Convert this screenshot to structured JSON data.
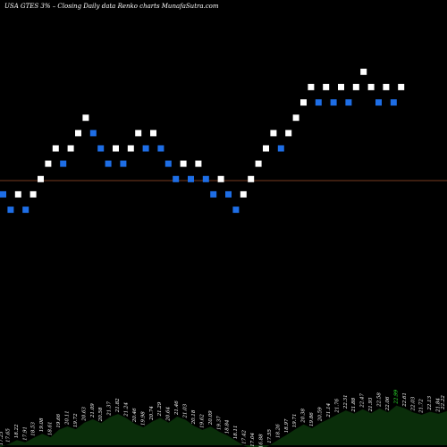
{
  "chart_data": {
    "type": "renko",
    "title": "USA GTES 3% – Closing Daily data Renko charts MunafaSutra.com",
    "colors": {
      "background": "#000000",
      "up_brick": "#ffffff",
      "down_brick": "#1e6ee6",
      "reference_line": "#a0522d",
      "volume_fill": "#0a2e0a",
      "volume_label": "#ffffff",
      "volume_label_highlight": "#33ff33"
    },
    "price_range": [
      17.0,
      27.5
    ],
    "reference_price": 21.9,
    "brick_size": 0.5,
    "bricks": [
      {
        "close": 21.45,
        "dir": "down"
      },
      {
        "close": 20.95,
        "dir": "down"
      },
      {
        "close": 21.45,
        "dir": "up"
      },
      {
        "close": 20.95,
        "dir": "down"
      },
      {
        "close": 21.45,
        "dir": "up"
      },
      {
        "close": 21.95,
        "dir": "up"
      },
      {
        "close": 22.45,
        "dir": "up"
      },
      {
        "close": 22.95,
        "dir": "up"
      },
      {
        "close": 22.45,
        "dir": "down"
      },
      {
        "close": 22.95,
        "dir": "up"
      },
      {
        "close": 23.45,
        "dir": "up"
      },
      {
        "close": 23.95,
        "dir": "up"
      },
      {
        "close": 23.45,
        "dir": "down"
      },
      {
        "close": 22.95,
        "dir": "down"
      },
      {
        "close": 22.45,
        "dir": "down"
      },
      {
        "close": 22.95,
        "dir": "up"
      },
      {
        "close": 22.45,
        "dir": "down"
      },
      {
        "close": 22.95,
        "dir": "up"
      },
      {
        "close": 23.45,
        "dir": "up"
      },
      {
        "close": 22.95,
        "dir": "down"
      },
      {
        "close": 23.45,
        "dir": "up"
      },
      {
        "close": 22.95,
        "dir": "down"
      },
      {
        "close": 22.45,
        "dir": "down"
      },
      {
        "close": 21.95,
        "dir": "down"
      },
      {
        "close": 22.45,
        "dir": "up"
      },
      {
        "close": 21.95,
        "dir": "down"
      },
      {
        "close": 22.45,
        "dir": "up"
      },
      {
        "close": 21.95,
        "dir": "down"
      },
      {
        "close": 21.45,
        "dir": "down"
      },
      {
        "close": 21.95,
        "dir": "up"
      },
      {
        "close": 21.45,
        "dir": "down"
      },
      {
        "close": 20.95,
        "dir": "down"
      },
      {
        "close": 21.45,
        "dir": "up"
      },
      {
        "close": 21.95,
        "dir": "up"
      },
      {
        "close": 22.45,
        "dir": "up"
      },
      {
        "close": 22.95,
        "dir": "up"
      },
      {
        "close": 23.45,
        "dir": "up"
      },
      {
        "close": 22.95,
        "dir": "down"
      },
      {
        "close": 23.45,
        "dir": "up"
      },
      {
        "close": 23.95,
        "dir": "up"
      },
      {
        "close": 24.45,
        "dir": "up"
      },
      {
        "close": 24.95,
        "dir": "up"
      },
      {
        "close": 24.45,
        "dir": "down"
      },
      {
        "close": 24.95,
        "dir": "up"
      },
      {
        "close": 24.45,
        "dir": "down"
      },
      {
        "close": 24.95,
        "dir": "up"
      },
      {
        "close": 24.45,
        "dir": "down"
      },
      {
        "close": 24.95,
        "dir": "up"
      },
      {
        "close": 25.45,
        "dir": "up"
      },
      {
        "close": 24.95,
        "dir": "up"
      },
      {
        "close": 24.45,
        "dir": "down"
      },
      {
        "close": 24.95,
        "dir": "up"
      },
      {
        "close": 24.45,
        "dir": "down"
      },
      {
        "close": 24.95,
        "dir": "up"
      }
    ],
    "volume_labels": [
      {
        "text": "17.23",
        "value": 17.23,
        "highlight": false
      },
      {
        "text": "17.65",
        "value": 17.65,
        "highlight": false
      },
      {
        "text": "18.22",
        "value": 18.22,
        "highlight": false
      },
      {
        "text": "17.91",
        "value": 17.91,
        "highlight": false
      },
      {
        "text": "18.53",
        "value": 18.53,
        "highlight": false
      },
      {
        "text": "19.08",
        "value": 19.08,
        "highlight": false
      },
      {
        "text": "18.61",
        "value": 18.61,
        "highlight": false
      },
      {
        "text": "19.66",
        "value": 19.66,
        "highlight": false
      },
      {
        "text": "20.11",
        "value": 20.11,
        "highlight": false
      },
      {
        "text": "19.72",
        "value": 19.72,
        "highlight": false
      },
      {
        "text": "20.63",
        "value": 20.63,
        "highlight": false
      },
      {
        "text": "21.09",
        "value": 21.09,
        "highlight": false
      },
      {
        "text": "20.58",
        "value": 20.58,
        "highlight": false
      },
      {
        "text": "21.37",
        "value": 21.37,
        "highlight": false
      },
      {
        "text": "21.82",
        "value": 21.82,
        "highlight": false
      },
      {
        "text": "21.24",
        "value": 21.24,
        "highlight": false
      },
      {
        "text": "20.46",
        "value": 20.46,
        "highlight": false
      },
      {
        "text": "19.98",
        "value": 19.98,
        "highlight": false
      },
      {
        "text": "20.74",
        "value": 20.74,
        "highlight": false
      },
      {
        "text": "21.29",
        "value": 21.29,
        "highlight": false
      },
      {
        "text": "20.64",
        "value": 20.64,
        "highlight": false
      },
      {
        "text": "21.46",
        "value": 21.46,
        "highlight": false
      },
      {
        "text": "21.03",
        "value": 21.03,
        "highlight": false
      },
      {
        "text": "20.18",
        "value": 20.18,
        "highlight": false
      },
      {
        "text": "19.62",
        "value": 19.62,
        "highlight": false
      },
      {
        "text": "20.09",
        "value": 20.09,
        "highlight": false
      },
      {
        "text": "19.37",
        "value": 19.37,
        "highlight": false
      },
      {
        "text": "18.84",
        "value": 18.84,
        "highlight": false
      },
      {
        "text": "18.11",
        "value": 18.11,
        "highlight": false
      },
      {
        "text": "17.42",
        "value": 17.42,
        "highlight": false
      },
      {
        "text": "17.04",
        "value": 17.04,
        "highlight": false
      },
      {
        "text": "16.88",
        "value": 16.88,
        "highlight": false
      },
      {
        "text": "17.55",
        "value": 17.55,
        "highlight": false
      },
      {
        "text": "18.26",
        "value": 18.26,
        "highlight": false
      },
      {
        "text": "18.97",
        "value": 18.97,
        "highlight": false
      },
      {
        "text": "19.71",
        "value": 19.71,
        "highlight": false
      },
      {
        "text": "20.38",
        "value": 20.38,
        "highlight": false
      },
      {
        "text": "19.86",
        "value": 19.86,
        "highlight": false
      },
      {
        "text": "20.59",
        "value": 20.59,
        "highlight": false
      },
      {
        "text": "21.14",
        "value": 21.14,
        "highlight": false
      },
      {
        "text": "21.76",
        "value": 21.76,
        "highlight": false
      },
      {
        "text": "22.31",
        "value": 22.31,
        "highlight": false
      },
      {
        "text": "21.88",
        "value": 21.88,
        "highlight": false
      },
      {
        "text": "22.47",
        "value": 22.47,
        "highlight": false
      },
      {
        "text": "21.93",
        "value": 21.93,
        "highlight": false
      },
      {
        "text": "22.58",
        "value": 22.58,
        "highlight": false
      },
      {
        "text": "22.06",
        "value": 22.06,
        "highlight": false
      },
      {
        "text": "22.99",
        "value": 22.99,
        "highlight": true
      },
      {
        "text": "22.61",
        "value": 22.61,
        "highlight": false
      },
      {
        "text": "22.03",
        "value": 22.03,
        "highlight": false
      },
      {
        "text": "21.72",
        "value": 21.72,
        "highlight": false
      },
      {
        "text": "22.13",
        "value": 22.13,
        "highlight": false
      },
      {
        "text": "21.84",
        "value": 21.84,
        "highlight": false
      },
      {
        "text": "22.22",
        "value": 22.22,
        "highlight": false
      }
    ]
  }
}
